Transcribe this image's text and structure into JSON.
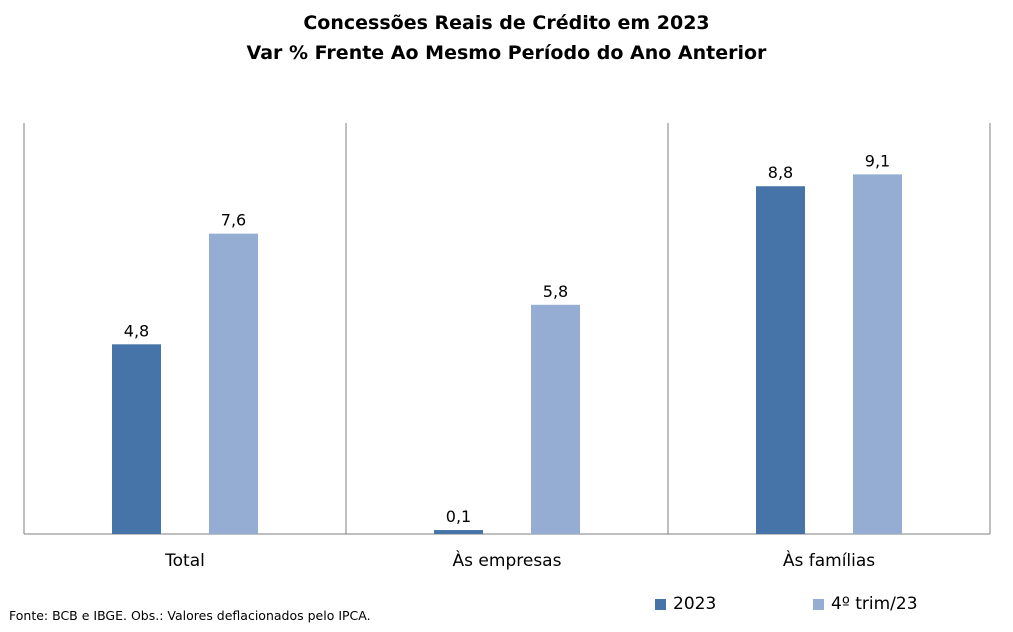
{
  "title": "Concessões Reais de Crédito em 2023",
  "subtitle": "Var % Frente Ao Mesmo Período do Ano Anterior",
  "source": "Fonte: BCB e IBGE. Obs.: Valores deflacionados pelo IPCA.",
  "colors": {
    "2023": "#4673a8",
    "4trim23": "#95acd3",
    "axis": "#7f7f7f"
  },
  "chart_data": {
    "type": "bar",
    "categories": [
      "Total",
      "Às empresas",
      "Às famílias"
    ],
    "series": [
      {
        "name": "2023",
        "values": [
          4.8,
          0.1,
          8.8
        ],
        "labels": [
          "4,8",
          "0,1",
          "8,8"
        ]
      },
      {
        "name": "4º trim/23",
        "values": [
          7.6,
          5.8,
          9.1
        ],
        "labels": [
          "7,6",
          "5,8",
          "9,1"
        ]
      }
    ],
    "ylim": [
      0,
      10.4
    ],
    "legend": "bottom-right",
    "grid": false
  }
}
